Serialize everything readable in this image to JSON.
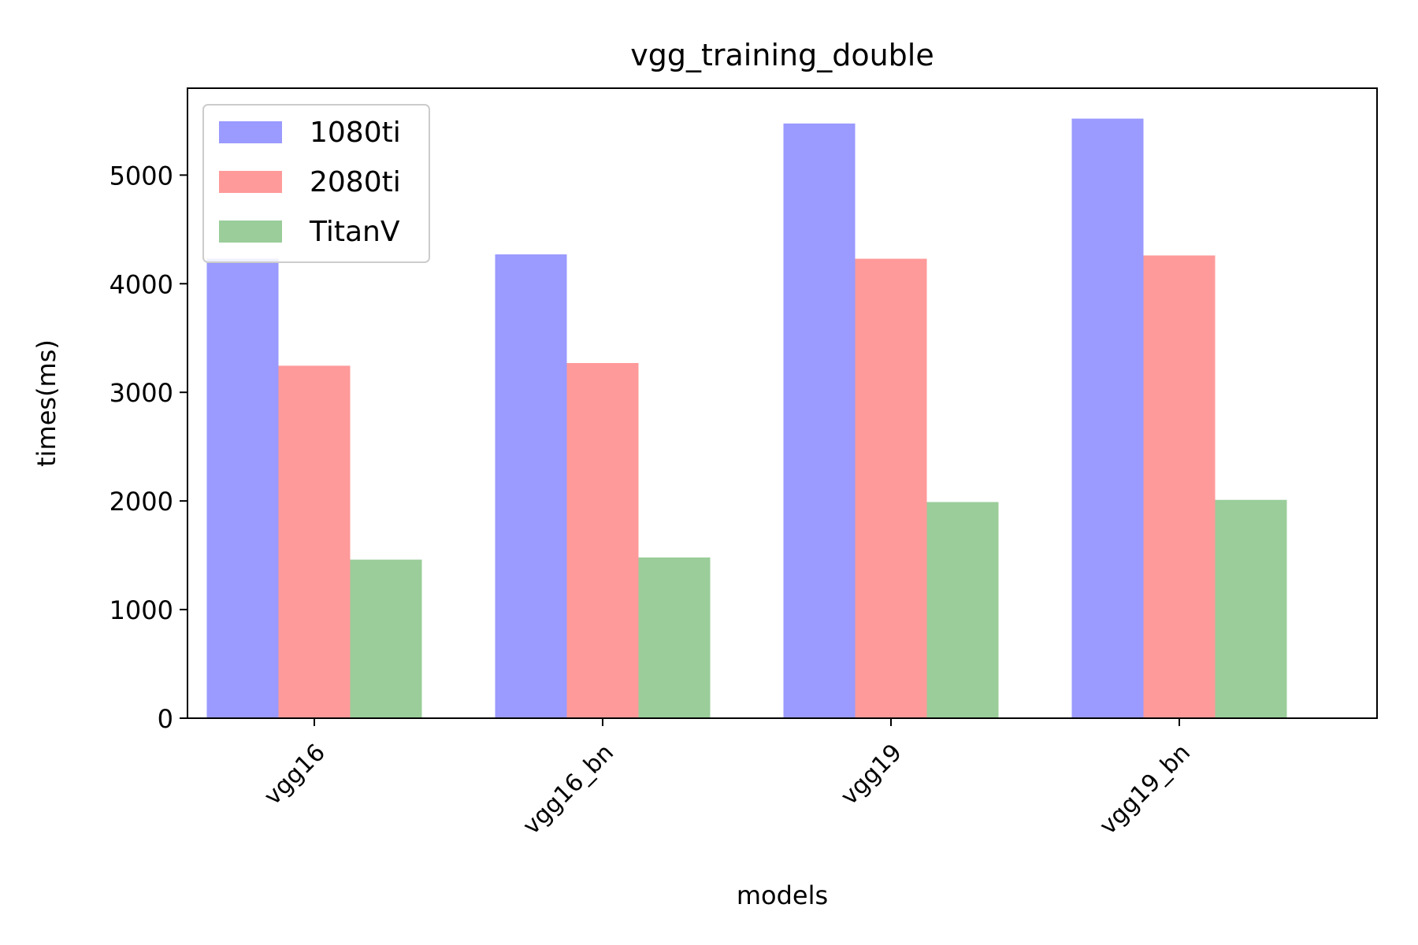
{
  "chart_data": {
    "type": "bar",
    "title": "vgg_training_double",
    "xlabel": "models",
    "ylabel": "times(ms)",
    "categories": [
      "vgg16",
      "vgg16_bn",
      "vgg19",
      "vgg19_bn"
    ],
    "series": [
      {
        "name": "1080ti",
        "color": "#9a9aff",
        "values": [
          4230,
          4270,
          5475,
          5520
        ]
      },
      {
        "name": "2080ti",
        "color": "#ff9a9a",
        "values": [
          3245,
          3270,
          4230,
          4260
        ]
      },
      {
        "name": "TitanV",
        "color": "#9acd9a",
        "values": [
          1460,
          1480,
          1990,
          2010
        ]
      }
    ],
    "ylim": [
      0,
      5800
    ],
    "yticks": [
      0,
      1000,
      2000,
      3000,
      4000,
      5000
    ],
    "ytick_labels": [
      "0",
      "1000",
      "2000",
      "3000",
      "4000",
      "5000"
    ],
    "grid": false,
    "legend_position": "top-left"
  }
}
